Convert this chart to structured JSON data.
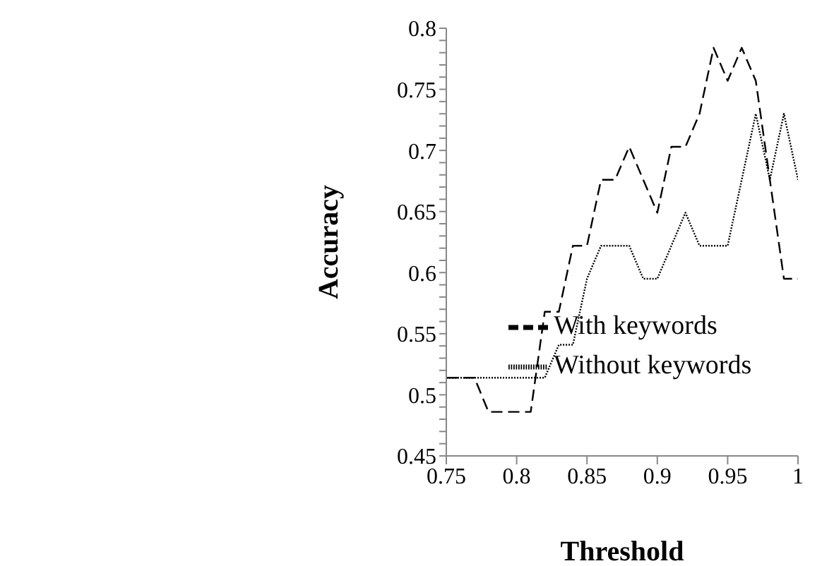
{
  "chart_data": {
    "type": "line",
    "xlabel": "Threshold",
    "ylabel": "Accuracy",
    "x": [
      0.75,
      0.76,
      0.77,
      0.78,
      0.79,
      0.8,
      0.81,
      0.82,
      0.83,
      0.84,
      0.85,
      0.86,
      0.87,
      0.88,
      0.89,
      0.9,
      0.91,
      0.92,
      0.93,
      0.94,
      0.95,
      0.96,
      0.97,
      0.98,
      0.99,
      1
    ],
    "series": [
      {
        "name": "With keywords",
        "color": "#000000",
        "line_style": "dashed",
        "values": [
          0.514,
          0.514,
          0.514,
          0.486,
          0.486,
          0.486,
          0.486,
          0.568,
          0.568,
          0.622,
          0.622,
          0.676,
          0.676,
          0.703,
          0.676,
          0.649,
          0.703,
          0.703,
          0.73,
          0.784,
          0.757,
          0.784,
          0.757,
          0.676,
          0.595,
          0.595
        ]
      },
      {
        "name": "Without keywords",
        "color": "#000000",
        "line_style": "dotted",
        "values": [
          0.514,
          0.514,
          0.514,
          0.514,
          0.514,
          0.514,
          0.514,
          0.514,
          0.541,
          0.541,
          0.595,
          0.622,
          0.622,
          0.622,
          0.595,
          0.595,
          0.622,
          0.649,
          0.622,
          0.622,
          0.622,
          0.676,
          0.73,
          0.676,
          0.73,
          0.676
        ]
      }
    ],
    "xlim": [
      0.75,
      1
    ],
    "xticks": [
      0.75,
      0.8,
      0.85,
      0.9,
      0.95,
      1
    ],
    "ylim": [
      0.45,
      0.8
    ],
    "yticks": [
      0.45,
      {
        "value": 0.46,
        "label": null
      },
      {
        "value": 0.47,
        "label": null
      },
      {
        "value": 0.48,
        "label": null
      },
      {
        "value": 0.49,
        "label": null
      },
      0.5,
      {
        "value": 0.51,
        "label": null
      },
      {
        "value": 0.52,
        "label": null
      },
      {
        "value": 0.53,
        "label": null
      },
      {
        "value": 0.54,
        "label": null
      },
      0.55,
      {
        "value": 0.56,
        "label": null
      },
      {
        "value": 0.57,
        "label": null
      },
      {
        "value": 0.58,
        "label": null
      },
      {
        "value": 0.59,
        "label": null
      },
      0.6,
      {
        "value": 0.61,
        "label": null
      },
      {
        "value": 0.62,
        "label": null
      },
      {
        "value": 0.63,
        "label": null
      },
      {
        "value": 0.64,
        "label": null
      },
      0.65,
      {
        "value": 0.66,
        "label": null
      },
      {
        "value": 0.67,
        "label": null
      },
      {
        "value": 0.68,
        "label": null
      },
      {
        "value": 0.69,
        "label": null
      },
      0.7,
      {
        "value": 0.71,
        "label": null
      },
      {
        "value": 0.72,
        "label": null
      },
      {
        "value": 0.73,
        "label": null
      },
      {
        "value": 0.74,
        "label": null
      },
      0.75,
      {
        "value": 0.76,
        "label": null
      },
      {
        "value": 0.77,
        "label": null
      },
      {
        "value": 0.78,
        "label": null
      },
      {
        "value": 0.79,
        "label": null
      },
      0.8
    ],
    "grid": false,
    "legend": "right",
    "marker": "none"
  }
}
